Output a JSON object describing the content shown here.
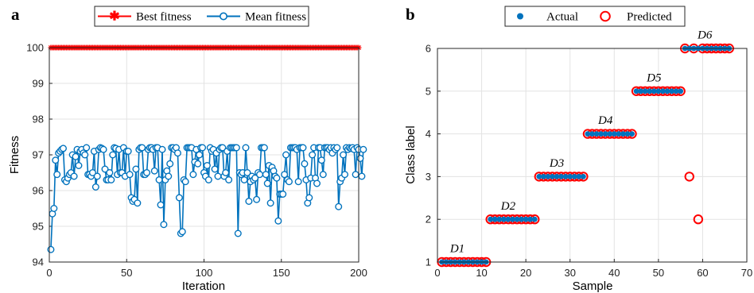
{
  "chart_data": [
    {
      "panel": "a",
      "type": "line",
      "xlabel": "Iteration",
      "ylabel": "Fitness",
      "xlim": [
        0,
        200
      ],
      "ylim": [
        94,
        100
      ],
      "xticks": [
        0,
        50,
        100,
        150,
        200
      ],
      "yticks": [
        94,
        95,
        96,
        97,
        98,
        99,
        100
      ],
      "grid": true,
      "legend_position": "top-center",
      "series": [
        {
          "name": "Best fitness",
          "color": "#ff0000",
          "marker": "asterisk",
          "constant": 100,
          "x_start": 1,
          "x_end": 200
        },
        {
          "name": "Mean fitness",
          "color": "#0072bd",
          "marker": "circle",
          "values": [
            94.35,
            95.35,
            95.5,
            96.85,
            96.45,
            97.05,
            97.1,
            97.15,
            97.18,
            96.3,
            96.25,
            96.35,
            96.45,
            96.5,
            97.0,
            96.4,
            96.95,
            97.15,
            96.7,
            97.1,
            97.15,
            97.05,
            97.0,
            97.2,
            96.45,
            96.45,
            96.4,
            96.5,
            97.1,
            96.1,
            96.4,
            97.15,
            97.2,
            97.18,
            97.15,
            96.6,
            96.3,
            96.3,
            96.5,
            96.3,
            97.0,
            97.2,
            97.18,
            96.45,
            97.15,
            96.5,
            96.5,
            97.2,
            96.4,
            97.1,
            97.1,
            96.45,
            95.8,
            95.7,
            95.75,
            96.6,
            95.65,
            97.15,
            97.2,
            97.2,
            96.45,
            96.45,
            96.5,
            97.15,
            97.2,
            97.2,
            97.15,
            96.55,
            97.2,
            97.2,
            96.3,
            95.6,
            97.15,
            95.05,
            96.3,
            96.55,
            96.4,
            96.75,
            97.2,
            97.2,
            97.15,
            97.2,
            97.05,
            95.8,
            94.8,
            94.85,
            96.3,
            96.25,
            97.2,
            97.2,
            97.2,
            97.2,
            96.45,
            96.8,
            97.15,
            96.75,
            97.0,
            97.2,
            97.2,
            96.5,
            96.4,
            96.7,
            96.3,
            97.2,
            97.1,
            97.15,
            96.6,
            97.05,
            96.4,
            97.15,
            97.2,
            97.2,
            96.4,
            96.5,
            97.1,
            96.3,
            97.2,
            97.2,
            97.2,
            97.2,
            97.2,
            94.8,
            96.5,
            96.45,
            96.5,
            96.3,
            97.2,
            96.5,
            95.7,
            96.25,
            96.4,
            96.3,
            96.35,
            95.75,
            96.5,
            96.45,
            97.2,
            97.2,
            97.2,
            96.45,
            96.2,
            96.7,
            95.65,
            96.65,
            96.55,
            96.4,
            96.35,
            95.15,
            95.9,
            95.9,
            95.9,
            96.45,
            97.0,
            96.3,
            96.25,
            97.2,
            97.2,
            97.2,
            97.2,
            97.15,
            96.25,
            97.2,
            97.2,
            97.2,
            96.75,
            96.3,
            95.65,
            95.8,
            96.35,
            97.0,
            97.2,
            96.35,
            96.2,
            97.2,
            97.2,
            96.85,
            96.45,
            97.2,
            97.2,
            97.2,
            97.15,
            97.2,
            97.05,
            97.2,
            97.15,
            97.2,
            95.55,
            96.25,
            96.35,
            97.0,
            96.45,
            97.2,
            97.15,
            97.2,
            97.18,
            97.2,
            97.15,
            96.45,
            97.2,
            97.15,
            96.9,
            96.4,
            97.15
          ]
        }
      ]
    },
    {
      "panel": "b",
      "type": "scatter",
      "xlabel": "Sample",
      "ylabel": "Class label",
      "xlim": [
        0,
        70
      ],
      "ylim": [
        1,
        6
      ],
      "xticks": [
        0,
        10,
        20,
        30,
        40,
        50,
        60,
        70
      ],
      "yticks": [
        1,
        2,
        3,
        4,
        5,
        6
      ],
      "grid": true,
      "legend_position": "top-center",
      "series": [
        {
          "name": "Actual",
          "color": "#0072bd",
          "marker": "filled-dot",
          "x": [
            1,
            2,
            3,
            4,
            5,
            6,
            7,
            8,
            9,
            10,
            11,
            12,
            13,
            14,
            15,
            16,
            17,
            18,
            19,
            20,
            21,
            22,
            23,
            24,
            25,
            26,
            27,
            28,
            29,
            30,
            31,
            32,
            33,
            34,
            35,
            36,
            37,
            38,
            39,
            40,
            41,
            42,
            43,
            44,
            45,
            46,
            47,
            48,
            49,
            50,
            51,
            52,
            53,
            54,
            55,
            56,
            57,
            58,
            59,
            60,
            61,
            62,
            63,
            64,
            65,
            66
          ],
          "y": [
            1,
            1,
            1,
            1,
            1,
            1,
            1,
            1,
            1,
            1,
            1,
            2,
            2,
            2,
            2,
            2,
            2,
            2,
            2,
            2,
            2,
            2,
            3,
            3,
            3,
            3,
            3,
            3,
            3,
            3,
            3,
            3,
            3,
            4,
            4,
            4,
            4,
            4,
            4,
            4,
            4,
            4,
            4,
            4,
            5,
            5,
            5,
            5,
            5,
            5,
            5,
            5,
            5,
            5,
            5,
            6,
            6,
            6,
            6,
            6,
            6,
            6,
            6,
            6,
            6,
            6
          ]
        },
        {
          "name": "Predicted",
          "color": "#ff0000",
          "marker": "open-circle",
          "x": [
            1,
            2,
            3,
            4,
            5,
            6,
            7,
            8,
            9,
            10,
            11,
            12,
            13,
            14,
            15,
            16,
            17,
            18,
            19,
            20,
            21,
            22,
            23,
            24,
            25,
            26,
            27,
            28,
            29,
            30,
            31,
            32,
            33,
            34,
            35,
            36,
            37,
            38,
            39,
            40,
            41,
            42,
            43,
            44,
            45,
            46,
            47,
            48,
            49,
            50,
            51,
            52,
            53,
            54,
            55,
            56,
            57,
            58,
            59,
            60,
            61,
            62,
            63,
            64,
            65,
            66
          ],
          "y": [
            1,
            1,
            1,
            1,
            1,
            1,
            1,
            1,
            1,
            1,
            1,
            2,
            2,
            2,
            2,
            2,
            2,
            2,
            2,
            2,
            2,
            2,
            3,
            3,
            3,
            3,
            3,
            3,
            3,
            3,
            3,
            3,
            3,
            4,
            4,
            4,
            4,
            4,
            4,
            4,
            4,
            4,
            4,
            4,
            5,
            5,
            5,
            5,
            5,
            5,
            5,
            5,
            5,
            5,
            5,
            6,
            3,
            6,
            2,
            6,
            6,
            6,
            6,
            6,
            6,
            6
          ]
        }
      ],
      "annotations": [
        {
          "text": "D1",
          "x": 4.5,
          "y": 1.25
        },
        {
          "text": "D2",
          "x": 16,
          "y": 2.25
        },
        {
          "text": "D3",
          "x": 27,
          "y": 3.25
        },
        {
          "text": "D4",
          "x": 38,
          "y": 4.25
        },
        {
          "text": "D5",
          "x": 49,
          "y": 5.25
        },
        {
          "text": "D6",
          "x": 60.5,
          "y": 6.25
        }
      ]
    }
  ]
}
